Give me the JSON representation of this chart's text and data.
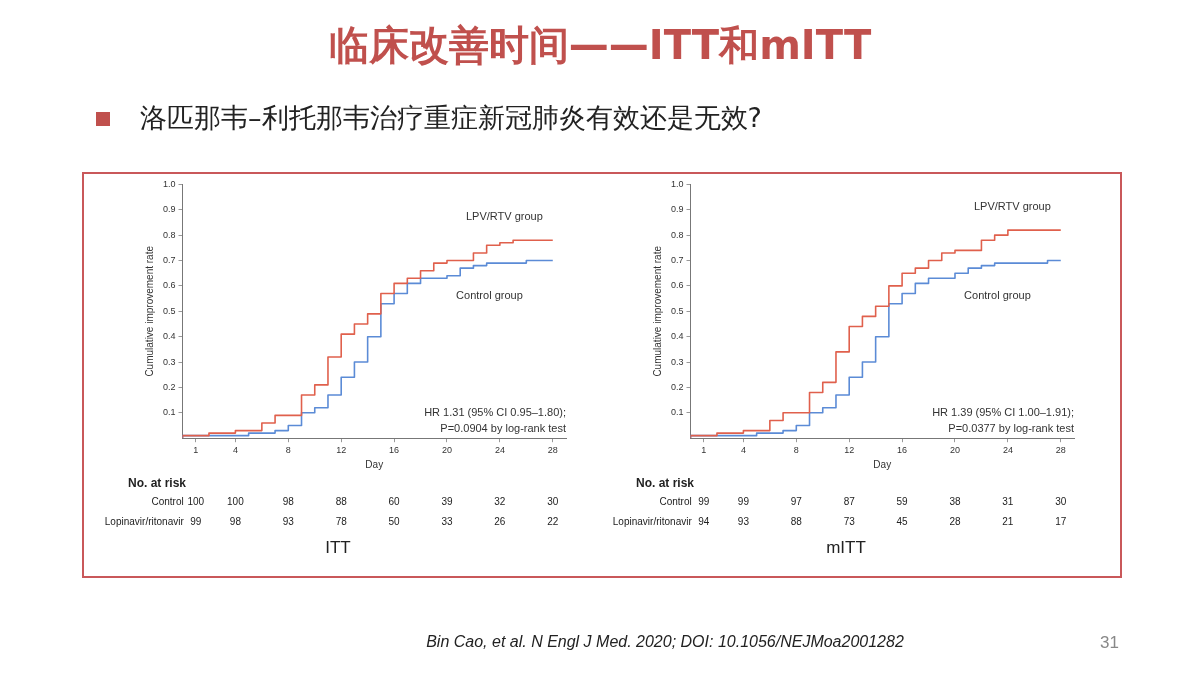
{
  "chart_data": [
    {
      "type": "other",
      "title": "临床改善时间——ITT和mITT",
      "subtitle": "洛匹那韦–利托那韦治疗重症新冠肺炎有效还是无效?",
      "annotations": [
        "Bin Cao, et al. N Engl J Med. 2020; DOI: 10.1056/NEJMoa2001282",
        "31"
      ]
    },
    {
      "type": "step",
      "subtitle": "ITT",
      "xlabel": "Day",
      "ylabel": "Cumulative improvement rate",
      "xlim": [
        0,
        29
      ],
      "xticks": [
        1,
        4,
        8,
        12,
        16,
        20,
        24,
        28
      ],
      "ylim": [
        0,
        1
      ],
      "yticks": [
        0.1,
        0.2,
        0.3,
        0.4,
        0.5,
        0.6,
        0.7,
        0.8,
        0.9,
        {
          "value": 1,
          "label": "1.0"
        }
      ],
      "grid": false,
      "legend": false,
      "marker": "none",
      "series": [
        {
          "name": "LPV/RTV group",
          "color": "#e0604c",
          "x": [
            0,
            2,
            4,
            6,
            7,
            9,
            10,
            11,
            12,
            13,
            14,
            15,
            16,
            17,
            18,
            19,
            20,
            22,
            23,
            24,
            25,
            28
          ],
          "values": [
            0,
            0.01,
            0.02,
            0.03,
            0.06,
            0.09,
            0.17,
            0.21,
            0.32,
            0.41,
            0.45,
            0.49,
            0.57,
            0.61,
            0.63,
            0.66,
            0.69,
            0.7,
            0.73,
            0.76,
            0.77,
            0.78
          ]
        },
        {
          "name": "Control group",
          "color": "#5b8bd6",
          "x": [
            0,
            5,
            7,
            8,
            9,
            10,
            11,
            12,
            13,
            14,
            15,
            16,
            17,
            18,
            20,
            21,
            22,
            23,
            26,
            27,
            28
          ],
          "values": [
            0,
            0.01,
            0.02,
            0.03,
            0.05,
            0.1,
            0.12,
            0.17,
            0.24,
            0.3,
            0.4,
            0.53,
            0.57,
            0.61,
            0.63,
            0.64,
            0.67,
            0.68,
            0.69,
            0.7,
            0.7
          ]
        }
      ],
      "annotations": [
        "HR 1.31 (95% CI 0.95–1.80);",
        "P=0.0904 by log-rank test",
        "No. at risk",
        "Control 100 100 98 88 60 39 32 30",
        "Lopinavir/ritonavir 99 98 93 78 50 33 26 22"
      ]
    },
    {
      "type": "step",
      "subtitle": "mITT",
      "xlabel": "Day",
      "ylabel": "Cumulative improvement rate",
      "xlim": [
        0,
        29
      ],
      "xticks": [
        1,
        4,
        8,
        12,
        16,
        20,
        24,
        28
      ],
      "ylim": [
        0,
        1
      ],
      "yticks": [
        0.1,
        0.2,
        0.3,
        0.4,
        0.5,
        0.6,
        0.7,
        0.8,
        0.9,
        {
          "value": 1,
          "label": "1.0"
        }
      ],
      "grid": false,
      "legend": false,
      "marker": "none",
      "series": [
        {
          "name": "LPV/RTV group",
          "color": "#e0604c",
          "x": [
            0,
            2,
            4,
            6,
            7,
            9,
            10,
            11,
            12,
            13,
            14,
            15,
            16,
            17,
            18,
            19,
            20,
            22,
            23,
            24,
            25,
            28
          ],
          "values": [
            0,
            0.01,
            0.02,
            0.03,
            0.07,
            0.1,
            0.18,
            0.22,
            0.34,
            0.44,
            0.48,
            0.52,
            0.6,
            0.65,
            0.67,
            0.7,
            0.73,
            0.74,
            0.78,
            0.8,
            0.82,
            0.82
          ]
        },
        {
          "name": "Control group",
          "color": "#5b8bd6",
          "x": [
            0,
            5,
            7,
            8,
            9,
            10,
            11,
            12,
            13,
            14,
            15,
            16,
            17,
            18,
            20,
            21,
            22,
            23,
            27,
            28
          ],
          "values": [
            0,
            0.01,
            0.02,
            0.03,
            0.05,
            0.1,
            0.12,
            0.17,
            0.24,
            0.3,
            0.4,
            0.53,
            0.57,
            0.61,
            0.63,
            0.65,
            0.67,
            0.68,
            0.69,
            0.7
          ]
        }
      ],
      "annotations": [
        "HR 1.39 (95% CI 1.00–1.91);",
        "P=0.0377 by log-rank test",
        "No. at risk",
        "Control 99 99 97 87 59 38 31 30",
        "Lopinavir/ritonavir 94 93 88 73 45 28 21 17"
      ]
    }
  ]
}
